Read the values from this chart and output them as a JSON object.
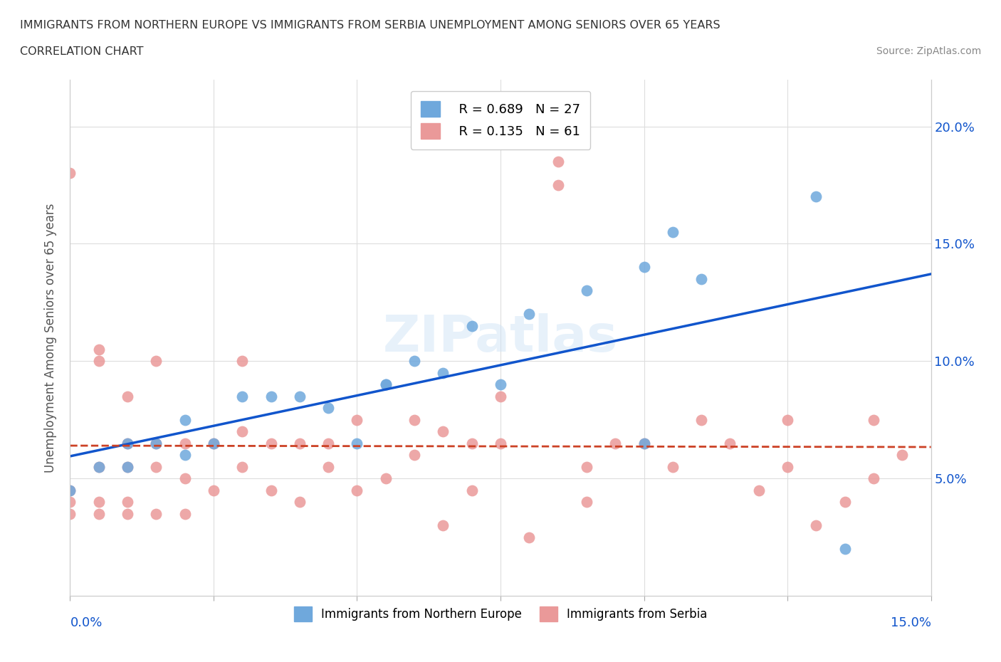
{
  "title_line1": "IMMIGRANTS FROM NORTHERN EUROPE VS IMMIGRANTS FROM SERBIA UNEMPLOYMENT AMONG SENIORS OVER 65 YEARS",
  "title_line2": "CORRELATION CHART",
  "source": "Source: ZipAtlas.com",
  "ylabel": "Unemployment Among Seniors over 65 years",
  "legend_blue_r": "R = 0.689",
  "legend_blue_n": "N = 27",
  "legend_pink_r": "R = 0.135",
  "legend_pink_n": "N = 61",
  "blue_color": "#6fa8dc",
  "pink_color": "#ea9999",
  "blue_line_color": "#1155cc",
  "pink_line_color": "#cc4125",
  "watermark": "ZIPatlas",
  "blue_points_x": [
    0.0,
    0.005,
    0.01,
    0.01,
    0.015,
    0.02,
    0.02,
    0.025,
    0.03,
    0.035,
    0.04,
    0.045,
    0.05,
    0.055,
    0.055,
    0.06,
    0.065,
    0.07,
    0.075,
    0.08,
    0.09,
    0.1,
    0.1,
    0.105,
    0.11,
    0.13,
    0.135
  ],
  "blue_points_y": [
    0.045,
    0.055,
    0.055,
    0.065,
    0.065,
    0.06,
    0.075,
    0.065,
    0.085,
    0.085,
    0.085,
    0.08,
    0.065,
    0.09,
    0.09,
    0.1,
    0.095,
    0.115,
    0.09,
    0.12,
    0.13,
    0.14,
    0.065,
    0.155,
    0.135,
    0.17,
    0.02
  ],
  "pink_points_x": [
    0.0,
    0.0,
    0.0,
    0.0,
    0.005,
    0.005,
    0.005,
    0.005,
    0.005,
    0.01,
    0.01,
    0.01,
    0.01,
    0.01,
    0.015,
    0.015,
    0.015,
    0.015,
    0.02,
    0.02,
    0.02,
    0.025,
    0.025,
    0.03,
    0.03,
    0.03,
    0.035,
    0.035,
    0.04,
    0.04,
    0.045,
    0.045,
    0.05,
    0.05,
    0.055,
    0.06,
    0.06,
    0.065,
    0.065,
    0.07,
    0.07,
    0.075,
    0.075,
    0.08,
    0.085,
    0.085,
    0.09,
    0.09,
    0.095,
    0.1,
    0.105,
    0.11,
    0.115,
    0.12,
    0.125,
    0.125,
    0.13,
    0.135,
    0.14,
    0.14,
    0.145
  ],
  "pink_points_y": [
    0.035,
    0.04,
    0.045,
    0.18,
    0.035,
    0.04,
    0.055,
    0.1,
    0.105,
    0.035,
    0.04,
    0.055,
    0.065,
    0.085,
    0.035,
    0.055,
    0.065,
    0.1,
    0.035,
    0.05,
    0.065,
    0.045,
    0.065,
    0.055,
    0.07,
    0.1,
    0.045,
    0.065,
    0.04,
    0.065,
    0.055,
    0.065,
    0.045,
    0.075,
    0.05,
    0.06,
    0.075,
    0.03,
    0.07,
    0.045,
    0.065,
    0.065,
    0.085,
    0.025,
    0.175,
    0.185,
    0.04,
    0.055,
    0.065,
    0.065,
    0.055,
    0.075,
    0.065,
    0.045,
    0.055,
    0.075,
    0.03,
    0.04,
    0.05,
    0.075,
    0.06
  ],
  "xmin": 0.0,
  "xmax": 0.15,
  "ymin": 0.0,
  "ymax": 0.22
}
